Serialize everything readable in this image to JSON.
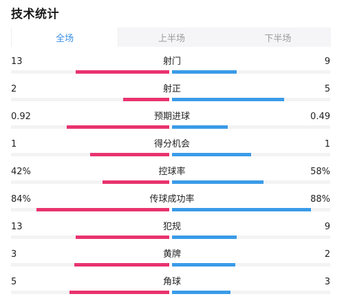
{
  "header": {
    "title": "技术统计"
  },
  "tabs": [
    {
      "label": "全场",
      "active": true
    },
    {
      "label": "上半场",
      "active": false
    },
    {
      "label": "下半场",
      "active": false
    }
  ],
  "colors": {
    "home": "#e8336e",
    "away": "#3a9be8",
    "track": "#f3f3f3",
    "active_tab": "#3a8ee6"
  },
  "stats": [
    {
      "label": "射门",
      "home": "13",
      "away": "9",
      "home_share": 0.59,
      "away_share": 0.41
    },
    {
      "label": "射正",
      "home": "2",
      "away": "5",
      "home_share": 0.29,
      "away_share": 0.71
    },
    {
      "label": "预期进球",
      "home": "0.92",
      "away": "0.49",
      "home_share": 0.65,
      "away_share": 0.35
    },
    {
      "label": "得分机会",
      "home": "1",
      "away": "1",
      "home_share": 0.5,
      "away_share": 0.5
    },
    {
      "label": "控球率",
      "home": "42%",
      "away": "58%",
      "home_share": 0.42,
      "away_share": 0.58
    },
    {
      "label": "传球成功率",
      "home": "84%",
      "away": "88%",
      "home_share": 0.84,
      "away_share": 0.88
    },
    {
      "label": "犯规",
      "home": "13",
      "away": "9",
      "home_share": 0.59,
      "away_share": 0.41
    },
    {
      "label": "黄牌",
      "home": "3",
      "away": "2",
      "home_share": 0.6,
      "away_share": 0.4
    },
    {
      "label": "角球",
      "home": "5",
      "away": "3",
      "home_share": 0.63,
      "away_share": 0.37
    }
  ]
}
